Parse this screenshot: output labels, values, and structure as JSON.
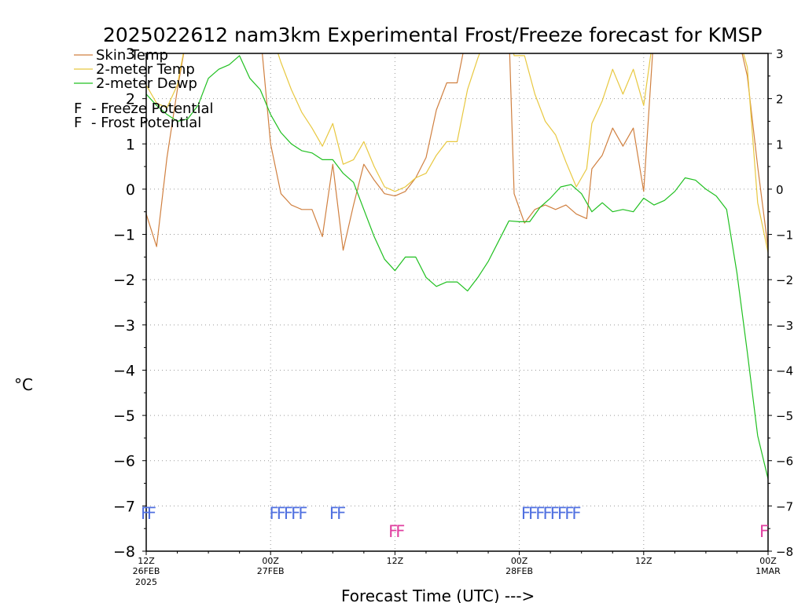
{
  "chart_data": {
    "type": "line",
    "title": "2025022612 nam3km Experimental Frost/Freeze forecast for KMSP",
    "ylabel": "°C",
    "xlabel": "Forecast Time (UTC) --->",
    "ylim": [
      -8,
      3
    ],
    "y_ticks": [
      -8,
      -7,
      -6,
      -5,
      -4,
      -3,
      -2,
      -1,
      0,
      1,
      2,
      3
    ],
    "x_range_hours": [
      0,
      60
    ],
    "grid": true,
    "x_ticks": [
      {
        "hour": 0,
        "line1": "12Z",
        "line2": "26FEB",
        "line3": "2025"
      },
      {
        "hour": 12,
        "line1": "00Z",
        "line2": "27FEB",
        "line3": ""
      },
      {
        "hour": 24,
        "line1": "12Z",
        "line2": "",
        "line3": ""
      },
      {
        "hour": 36,
        "line1": "00Z",
        "line2": "28FEB",
        "line3": ""
      },
      {
        "hour": 48,
        "line1": "12Z",
        "line2": "",
        "line3": ""
      },
      {
        "hour": 60,
        "line1": "00Z",
        "line2": "1MAR",
        "line3": ""
      }
    ],
    "series": [
      {
        "name": "Skin Temp",
        "color": "#d08040",
        "points": [
          [
            0,
            -0.55
          ],
          [
            1,
            -1.27
          ],
          [
            2,
            0.7
          ],
          [
            3,
            2.2
          ],
          [
            4,
            3.5
          ],
          [
            10,
            3.5
          ],
          [
            11,
            3.5
          ],
          [
            12,
            1.0
          ],
          [
            13,
            -0.1
          ],
          [
            14,
            -0.35
          ],
          [
            15,
            -0.45
          ],
          [
            16,
            -0.45
          ],
          [
            17,
            -1.05
          ],
          [
            18,
            0.55
          ],
          [
            19,
            -1.35
          ],
          [
            20,
            -0.35
          ],
          [
            21,
            0.55
          ],
          [
            22,
            0.2
          ],
          [
            23,
            -0.1
          ],
          [
            24,
            -0.15
          ],
          [
            25,
            -0.05
          ],
          [
            26,
            0.25
          ],
          [
            27,
            0.7
          ],
          [
            28,
            1.75
          ],
          [
            29,
            2.35
          ],
          [
            30,
            2.35
          ],
          [
            31,
            3.5
          ],
          [
            35,
            3.5
          ],
          [
            35.5,
            -0.1
          ],
          [
            36.5,
            -0.75
          ],
          [
            37.5,
            -0.45
          ],
          [
            38.5,
            -0.35
          ],
          [
            39.5,
            -0.45
          ],
          [
            40.5,
            -0.35
          ],
          [
            41.5,
            -0.55
          ],
          [
            42.5,
            -0.65
          ],
          [
            43,
            0.45
          ],
          [
            44,
            0.75
          ],
          [
            45,
            1.35
          ],
          [
            46,
            0.95
          ],
          [
            47,
            1.35
          ],
          [
            48,
            -0.05
          ],
          [
            49,
            3.5
          ],
          [
            57,
            3.5
          ],
          [
            58,
            2.5
          ],
          [
            59,
            0.5
          ],
          [
            60,
            -1.3
          ]
        ]
      },
      {
        "name": "2-meter Temp",
        "color": "#e8c840",
        "points": [
          [
            0,
            2.3
          ],
          [
            1,
            1.9
          ],
          [
            2,
            1.8
          ],
          [
            3,
            2.3
          ],
          [
            4,
            3.5
          ],
          [
            12,
            3.5
          ],
          [
            13,
            2.8
          ],
          [
            14,
            2.2
          ],
          [
            15,
            1.7
          ],
          [
            16,
            1.35
          ],
          [
            17,
            0.95
          ],
          [
            18,
            1.45
          ],
          [
            19,
            0.55
          ],
          [
            20,
            0.65
          ],
          [
            21,
            1.05
          ],
          [
            22,
            0.5
          ],
          [
            23,
            0.05
          ],
          [
            24,
            -0.05
          ],
          [
            25,
            0.05
          ],
          [
            26,
            0.25
          ],
          [
            27,
            0.35
          ],
          [
            28,
            0.75
          ],
          [
            29,
            1.05
          ],
          [
            30,
            1.05
          ],
          [
            31,
            2.2
          ],
          [
            32,
            2.9
          ],
          [
            33,
            3.5
          ],
          [
            35,
            3.5
          ],
          [
            35.5,
            2.95
          ],
          [
            36.5,
            2.95
          ],
          [
            37.5,
            2.1
          ],
          [
            38.5,
            1.5
          ],
          [
            39.5,
            1.2
          ],
          [
            40.5,
            0.6
          ],
          [
            41.5,
            0.05
          ],
          [
            42.5,
            0.45
          ],
          [
            43,
            1.45
          ],
          [
            44,
            1.95
          ],
          [
            45,
            2.65
          ],
          [
            46,
            2.1
          ],
          [
            47,
            2.65
          ],
          [
            48,
            1.85
          ],
          [
            49,
            3.5
          ],
          [
            57,
            3.5
          ],
          [
            58,
            2.7
          ],
          [
            59,
            -0.3
          ],
          [
            60,
            -1.4
          ]
        ]
      },
      {
        "name": "2-meter Dewp",
        "color": "#20c020",
        "points": [
          [
            0,
            2.1
          ],
          [
            1,
            1.85
          ],
          [
            2,
            1.65
          ],
          [
            3,
            1.5
          ],
          [
            4,
            1.55
          ],
          [
            5,
            1.85
          ],
          [
            6,
            2.45
          ],
          [
            7,
            2.65
          ],
          [
            8,
            2.75
          ],
          [
            9,
            2.95
          ],
          [
            10,
            2.45
          ],
          [
            11,
            2.2
          ],
          [
            12,
            1.65
          ],
          [
            13,
            1.25
          ],
          [
            14,
            1.0
          ],
          [
            15,
            0.85
          ],
          [
            16,
            0.8
          ],
          [
            17,
            0.65
          ],
          [
            18,
            0.65
          ],
          [
            19,
            0.35
          ],
          [
            20,
            0.15
          ],
          [
            21,
            -0.45
          ],
          [
            22,
            -1.05
          ],
          [
            23,
            -1.55
          ],
          [
            24,
            -1.8
          ],
          [
            25,
            -1.5
          ],
          [
            26,
            -1.5
          ],
          [
            27,
            -1.95
          ],
          [
            28,
            -2.15
          ],
          [
            29,
            -2.05
          ],
          [
            30,
            -2.05
          ],
          [
            31,
            -2.25
          ],
          [
            32,
            -1.95
          ],
          [
            33,
            -1.6
          ],
          [
            34,
            -1.15
          ],
          [
            35,
            -0.7
          ],
          [
            36,
            -0.72
          ],
          [
            37,
            -0.72
          ],
          [
            38,
            -0.4
          ],
          [
            39,
            -0.2
          ],
          [
            40,
            0.05
          ],
          [
            41,
            0.1
          ],
          [
            42,
            -0.1
          ],
          [
            43,
            -0.5
          ],
          [
            44,
            -0.3
          ],
          [
            45,
            -0.5
          ],
          [
            46,
            -0.45
          ],
          [
            47,
            -0.5
          ],
          [
            48,
            -0.2
          ],
          [
            49,
            -0.35
          ],
          [
            50,
            -0.25
          ],
          [
            51,
            -0.05
          ],
          [
            52,
            0.25
          ],
          [
            53,
            0.2
          ],
          [
            54,
            0.0
          ],
          [
            55,
            -0.15
          ],
          [
            56,
            -0.45
          ],
          [
            57,
            -1.85
          ],
          [
            58,
            -3.6
          ],
          [
            59,
            -5.45
          ],
          [
            60,
            -6.4
          ]
        ]
      }
    ],
    "legend": {
      "line_items": [
        "Skin Temp",
        "2-meter Temp",
        "2-meter Dewp"
      ],
      "flag_items": [
        {
          "symbol": "F",
          "text": "- Freeze Potential",
          "color": "#e040a0"
        },
        {
          "symbol": "F",
          "text": "- Frost Potential",
          "color": "#5070e0"
        }
      ]
    },
    "frost_flags": {
      "symbol": "F",
      "color": "#5070e0",
      "y": -7.15,
      "hours": [
        0,
        0.6,
        12.4,
        13.1,
        13.8,
        14.5,
        15.2,
        18.2,
        18.9,
        36.7,
        37.4,
        38.1,
        38.8,
        39.5,
        40.2,
        40.9,
        41.6
      ]
    },
    "freeze_flags": {
      "symbol": "F",
      "color": "#e040a0",
      "y": -7.55,
      "hours": [
        23.9,
        24.6,
        59.7
      ]
    }
  }
}
